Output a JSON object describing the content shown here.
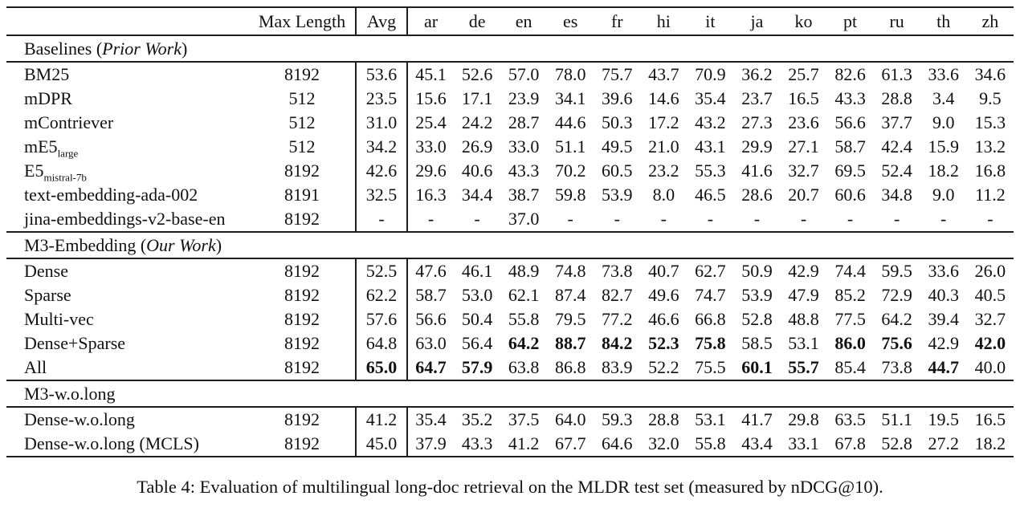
{
  "caption": "Table 4: Evaluation of multilingual long-doc retrieval on the MLDR test set (measured by nDCG@10).",
  "table": {
    "columns": [
      "",
      "Max Length",
      "Avg",
      "ar",
      "de",
      "en",
      "es",
      "fr",
      "hi",
      "it",
      "ja",
      "ko",
      "pt",
      "ru",
      "th",
      "zh"
    ],
    "sections": [
      {
        "title_prefix": "Baselines (",
        "title_italic": "Prior Work",
        "title_suffix": ")",
        "rows": [
          {
            "label": "BM25",
            "sub": "",
            "max_length": "8192",
            "avg": "53.6",
            "avg_bold": false,
            "values": [
              "45.1",
              "52.6",
              "57.0",
              "78.0",
              "75.7",
              "43.7",
              "70.9",
              "36.2",
              "25.7",
              "82.6",
              "61.3",
              "33.6",
              "34.6"
            ]
          },
          {
            "label": "mDPR",
            "sub": "",
            "max_length": "512",
            "avg": "23.5",
            "avg_bold": false,
            "values": [
              "15.6",
              "17.1",
              "23.9",
              "34.1",
              "39.6",
              "14.6",
              "35.4",
              "23.7",
              "16.5",
              "43.3",
              "28.8",
              "3.4",
              "9.5"
            ]
          },
          {
            "label": "mContriever",
            "sub": "",
            "max_length": "512",
            "avg": "31.0",
            "avg_bold": false,
            "values": [
              "25.4",
              "24.2",
              "28.7",
              "44.6",
              "50.3",
              "17.2",
              "43.2",
              "27.3",
              "23.6",
              "56.6",
              "37.7",
              "9.0",
              "15.3"
            ]
          },
          {
            "label": "mE5",
            "sub": "large",
            "max_length": "512",
            "avg": "34.2",
            "avg_bold": false,
            "values": [
              "33.0",
              "26.9",
              "33.0",
              "51.1",
              "49.5",
              "21.0",
              "43.1",
              "29.9",
              "27.1",
              "58.7",
              "42.4",
              "15.9",
              "13.2"
            ]
          },
          {
            "label": "E5",
            "sub": "mistral-7b",
            "max_length": "8192",
            "avg": "42.6",
            "avg_bold": false,
            "values": [
              "29.6",
              "40.6",
              "43.3",
              "70.2",
              "60.5",
              "23.2",
              "55.3",
              "41.6",
              "32.7",
              "69.5",
              "52.4",
              "18.2",
              "16.8"
            ]
          },
          {
            "label": "text-embedding-ada-002",
            "sub": "",
            "max_length": "8191",
            "avg": "32.5",
            "avg_bold": false,
            "values": [
              "16.3",
              "34.4",
              "38.7",
              "59.8",
              "53.9",
              "8.0",
              "46.5",
              "28.6",
              "20.7",
              "60.6",
              "34.8",
              "9.0",
              "11.2"
            ]
          },
          {
            "label": "jina-embeddings-v2-base-en",
            "sub": "",
            "max_length": "8192",
            "avg": "-",
            "avg_bold": false,
            "values": [
              "-",
              "-",
              "37.0",
              "-",
              "-",
              "-",
              "-",
              "-",
              "-",
              "-",
              "-",
              "-",
              "-"
            ]
          }
        ]
      },
      {
        "title_prefix": "M3-Embedding (",
        "title_italic": "Our Work",
        "title_suffix": ")",
        "rows": [
          {
            "label": "Dense",
            "sub": "",
            "max_length": "8192",
            "avg": "52.5",
            "avg_bold": false,
            "values": [
              "47.6",
              "46.1",
              "48.9",
              "74.8",
              "73.8",
              "40.7",
              "62.7",
              "50.9",
              "42.9",
              "74.4",
              "59.5",
              "33.6",
              "26.0"
            ]
          },
          {
            "label": "Sparse",
            "sub": "",
            "max_length": "8192",
            "avg": "62.2",
            "avg_bold": false,
            "values": [
              "58.7",
              "53.0",
              "62.1",
              "87.4",
              "82.7",
              "49.6",
              "74.7",
              "53.9",
              "47.9",
              "85.2",
              "72.9",
              "40.3",
              "40.5"
            ]
          },
          {
            "label": "Multi-vec",
            "sub": "",
            "max_length": "8192",
            "avg": "57.6",
            "avg_bold": false,
            "values": [
              "56.6",
              "50.4",
              "55.8",
              "79.5",
              "77.2",
              "46.6",
              "66.8",
              "52.8",
              "48.8",
              "77.5",
              "64.2",
              "39.4",
              "32.7"
            ]
          },
          {
            "label": "Dense+Sparse",
            "sub": "",
            "max_length": "8192",
            "avg": "64.8",
            "avg_bold": false,
            "values": [
              "63.0",
              "56.4",
              "64.2",
              "88.7",
              "84.2",
              "52.3",
              "75.8",
              "58.5",
              "53.1",
              "86.0",
              "75.6",
              "42.9",
              "42.0"
            ],
            "bold": [
              false,
              false,
              true,
              true,
              true,
              true,
              true,
              false,
              false,
              true,
              true,
              false,
              true
            ]
          },
          {
            "label": "All",
            "sub": "",
            "max_length": "8192",
            "avg": "65.0",
            "avg_bold": true,
            "values": [
              "64.7",
              "57.9",
              "63.8",
              "86.8",
              "83.9",
              "52.2",
              "75.5",
              "60.1",
              "55.7",
              "85.4",
              "73.8",
              "44.7",
              "40.0"
            ],
            "bold": [
              true,
              true,
              false,
              false,
              false,
              false,
              false,
              true,
              true,
              false,
              false,
              true,
              false
            ]
          }
        ]
      },
      {
        "title_prefix": "M3-w.o.long",
        "title_italic": "",
        "title_suffix": "",
        "rows": [
          {
            "label": "Dense-w.o.long",
            "sub": "",
            "max_length": "8192",
            "avg": "41.2",
            "avg_bold": false,
            "values": [
              "35.4",
              "35.2",
              "37.5",
              "64.0",
              "59.3",
              "28.8",
              "53.1",
              "41.7",
              "29.8",
              "63.5",
              "51.1",
              "19.5",
              "16.5"
            ]
          },
          {
            "label": "Dense-w.o.long (MCLS)",
            "sub": "",
            "max_length": "8192",
            "avg": "45.0",
            "avg_bold": false,
            "values": [
              "37.9",
              "43.3",
              "41.2",
              "67.7",
              "64.6",
              "32.0",
              "55.8",
              "43.4",
              "33.1",
              "67.8",
              "52.8",
              "27.2",
              "18.2"
            ]
          }
        ]
      }
    ]
  }
}
